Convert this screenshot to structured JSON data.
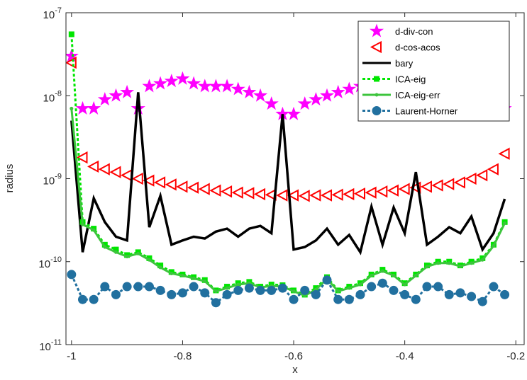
{
  "chart_data": {
    "type": "line",
    "xlabel": "x",
    "ylabel": "radius",
    "ylog": true,
    "xlim": [
      -1.01,
      -0.185
    ],
    "ylim": [
      1e-11,
      1e-07
    ],
    "xticks": [
      -1,
      -0.8,
      -0.6,
      -0.4,
      -0.2
    ],
    "yticks": [
      {
        "value": 1e-11,
        "label": "10",
        "exponent": "-11"
      },
      {
        "value": 1e-10,
        "label": "10",
        "exponent": "-10"
      },
      {
        "value": 1e-09,
        "label": "10",
        "exponent": "-9"
      },
      {
        "value": 1e-08,
        "label": "10",
        "exponent": "-8"
      },
      {
        "value": 1e-07,
        "label": "10",
        "exponent": "-7"
      }
    ],
    "legend": "upper right",
    "x": [
      -1,
      -0.98,
      -0.96,
      -0.94,
      -0.92,
      -0.9,
      -0.88,
      -0.86,
      -0.84,
      -0.82,
      -0.8,
      -0.78,
      -0.76,
      -0.74,
      -0.72,
      -0.7,
      -0.68,
      -0.66,
      -0.64,
      -0.62,
      -0.6,
      -0.58,
      -0.56,
      -0.54,
      -0.52,
      -0.5,
      -0.48,
      -0.46,
      -0.44,
      -0.42,
      -0.4,
      -0.38,
      -0.36,
      -0.34,
      -0.32,
      -0.3,
      -0.28,
      -0.26,
      -0.24,
      -0.22
    ],
    "series": [
      {
        "name": "d-div-con",
        "color": "#ff00ff",
        "marker": "star",
        "line": false,
        "values": [
          3e-08,
          7e-09,
          7e-09,
          9e-09,
          1e-08,
          1.1e-08,
          7e-09,
          1.3e-08,
          1.4e-08,
          1.5e-08,
          1.6e-08,
          1.4e-08,
          1.3e-08,
          1.3e-08,
          1.3e-08,
          1.2e-08,
          1.1e-08,
          1e-08,
          8e-09,
          6e-09,
          6e-09,
          8e-09,
          9e-09,
          1e-08,
          1.1e-08,
          1.2e-08,
          1.3e-08,
          1.4e-08,
          1.5e-08,
          1.5e-08,
          1.4e-08,
          1.3e-08,
          1.2e-08,
          1.1e-08,
          1e-08,
          9e-09,
          8e-09,
          7.5e-09,
          7e-09,
          7e-09
        ]
      },
      {
        "name": "d-cos-acos",
        "color": "#ff0000",
        "marker": "triangle-left",
        "line": false,
        "values": [
          2.5e-08,
          1.8e-09,
          1.4e-09,
          1.3e-09,
          1.2e-09,
          1.1e-09,
          1e-09,
          9.5e-10,
          9e-10,
          8.5e-10,
          8e-10,
          7.8e-10,
          7.5e-10,
          7.2e-10,
          7e-10,
          6.8e-10,
          6.7e-10,
          6.5e-10,
          6.4e-10,
          6.3e-10,
          6.3e-10,
          6.2e-10,
          6.3e-10,
          6.3e-10,
          6.4e-10,
          6.5e-10,
          6.6e-10,
          6.8e-10,
          7e-10,
          7.2e-10,
          7.5e-10,
          7.8e-10,
          8e-10,
          8.3e-10,
          8.6e-10,
          9e-10,
          1e-09,
          1.1e-09,
          1.3e-09,
          2e-09
        ]
      },
      {
        "name": "bary",
        "color": "#000000",
        "marker": "none",
        "line": true,
        "dash": false,
        "values": [
          5e-09,
          1.3e-10,
          5.8e-10,
          3e-10,
          2e-10,
          1.8e-10,
          1.1e-08,
          2.6e-10,
          6.2e-10,
          1.6e-10,
          1.8e-10,
          2e-10,
          1.9e-10,
          2.3e-10,
          2.5e-10,
          2e-10,
          2.5e-10,
          2.7e-10,
          2.2e-10,
          6e-09,
          1.4e-10,
          1.5e-10,
          1.8e-10,
          2.5e-10,
          1.6e-10,
          2.1e-10,
          1.3e-10,
          4.6e-10,
          1.6e-10,
          4.5e-10,
          2.2e-10,
          1.2e-09,
          1.6e-10,
          2e-10,
          2.6e-10,
          2.2e-10,
          3.5e-10,
          1.4e-10,
          2.2e-10,
          5.7e-10
        ]
      },
      {
        "name": "ICA-eig",
        "color": "#00e600",
        "marker": "square",
        "line": true,
        "dash": true,
        "values": [
          5.5e-08,
          3e-10,
          2.5e-10,
          1.6e-10,
          1.4e-10,
          1.2e-10,
          1.3e-10,
          1.1e-10,
          9e-11,
          7.5e-11,
          7e-11,
          6.5e-11,
          6e-11,
          4.5e-11,
          5e-11,
          5.5e-11,
          5.7e-11,
          5e-11,
          5.3e-11,
          5.2e-11,
          4.5e-11,
          4e-11,
          4.8e-11,
          6.5e-11,
          4.5e-11,
          5e-11,
          5.5e-11,
          7e-11,
          8e-11,
          7e-11,
          5.5e-11,
          7e-11,
          9e-11,
          1e-10,
          1e-10,
          9e-11,
          1e-10,
          1.1e-10,
          1.6e-10,
          3e-10
        ]
      },
      {
        "name": "ICA-eig-err",
        "color": "#3dc43d",
        "marker": "dot",
        "line": true,
        "dash": false,
        "values": [
          7e-09,
          2.8e-10,
          2.4e-10,
          1.5e-10,
          1.3e-10,
          1.15e-10,
          1.25e-10,
          1.05e-10,
          8.5e-11,
          7.2e-11,
          6.8e-11,
          6.3e-11,
          5.8e-11,
          4.4e-11,
          4.8e-11,
          5.3e-11,
          5.5e-11,
          4.9e-11,
          5.1e-11,
          5e-11,
          4.4e-11,
          3.9e-11,
          4.6e-11,
          6.2e-11,
          4.4e-11,
          4.8e-11,
          5.3e-11,
          6.8e-11,
          7.7e-11,
          6.8e-11,
          5.3e-11,
          6.8e-11,
          8.7e-11,
          9.6e-11,
          9.6e-11,
          8.8e-11,
          9.6e-11,
          1.05e-10,
          1.55e-10,
          2.9e-10
        ]
      },
      {
        "name": "Laurent-Horner",
        "color": "#21709f",
        "marker": "circle",
        "line": true,
        "dash": true,
        "values": [
          7e-11,
          3.5e-11,
          3.5e-11,
          5e-11,
          4e-11,
          5e-11,
          5e-11,
          5e-11,
          4.5e-11,
          4e-11,
          4.2e-11,
          5e-11,
          4.2e-11,
          3.2e-11,
          4e-11,
          4.5e-11,
          4.8e-11,
          4.5e-11,
          4.5e-11,
          4.8e-11,
          3.5e-11,
          4.5e-11,
          4e-11,
          6e-11,
          3.5e-11,
          3.5e-11,
          4e-11,
          5e-11,
          5.5e-11,
          4.5e-11,
          4e-11,
          3.5e-11,
          5e-11,
          5e-11,
          4e-11,
          4.2e-11,
          3.8e-11,
          3.3e-11,
          5e-11,
          4e-11
        ]
      }
    ]
  }
}
